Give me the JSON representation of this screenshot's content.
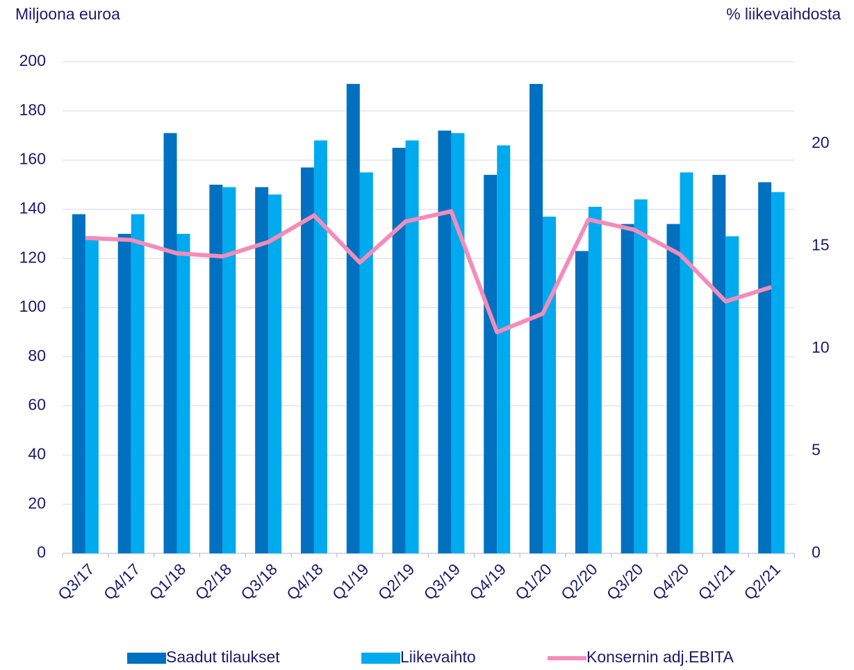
{
  "chart_data": {
    "type": "bar",
    "y_label": "Miljoona euroa",
    "y2_label": "% liikevaihdosta",
    "categories": [
      "Q3/17",
      "Q4/17",
      "Q1/18",
      "Q2/18",
      "Q3/18",
      "Q4/18",
      "Q1/19",
      "Q2/19",
      "Q3/19",
      "Q4/19",
      "Q1/20",
      "Q2/20",
      "Q3/20",
      "Q4/20",
      "Q1/21",
      "Q2/21"
    ],
    "series": [
      {
        "name": "Saadut tilaukset",
        "type": "bar",
        "color": "#0070c0",
        "values": [
          138,
          130,
          171,
          150,
          149,
          157,
          191,
          165,
          172,
          154,
          191,
          123,
          134,
          134,
          154,
          151
        ]
      },
      {
        "name": "Liikevaihto",
        "type": "bar",
        "color": "#00aaee",
        "values": [
          129,
          138,
          130,
          149,
          146,
          168,
          155,
          168,
          171,
          166,
          137,
          141,
          144,
          155,
          129,
          147
        ]
      },
      {
        "name": "Konsernin adj.EBITA",
        "type": "line",
        "axis": "y2",
        "color": "#f48cba",
        "values": [
          15.4,
          15.3,
          14.65,
          14.5,
          15.2,
          16.5,
          14.2,
          16.2,
          16.7,
          10.8,
          11.7,
          16.3,
          15.8,
          14.6,
          12.3,
          13.0
        ]
      }
    ],
    "ylim": [
      0,
      200
    ],
    "yticks": [
      0,
      20,
      40,
      60,
      80,
      100,
      120,
      140,
      160,
      180,
      200
    ],
    "y2lim": [
      0,
      24
    ],
    "y2ticks": [
      0,
      5,
      10,
      15,
      20
    ],
    "grid": true,
    "legend": "bottom"
  }
}
